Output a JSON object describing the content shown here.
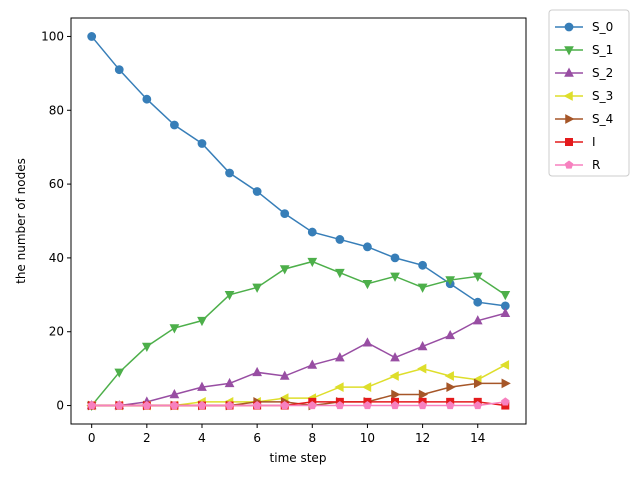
{
  "chart_data": {
    "type": "line",
    "title": "",
    "xlabel": "time step",
    "ylabel": "the number of nodes",
    "xlim": [
      -0.75,
      15.75
    ],
    "ylim": [
      -5,
      105
    ],
    "xticks": [
      0,
      2,
      4,
      6,
      8,
      10,
      12,
      14
    ],
    "yticks": [
      0,
      20,
      40,
      60,
      80,
      100
    ],
    "grid": false,
    "legend_position": "outside-right-top",
    "x": [
      0,
      1,
      2,
      3,
      4,
      5,
      6,
      7,
      8,
      9,
      10,
      11,
      12,
      13,
      14,
      15
    ],
    "series": [
      {
        "name": "S_0",
        "color": "#377eb8",
        "marker": "circle",
        "values": [
          100,
          91,
          83,
          76,
          71,
          63,
          58,
          52,
          47,
          45,
          43,
          40,
          38,
          33,
          28,
          27
        ]
      },
      {
        "name": "S_1",
        "color": "#4daf4a",
        "marker": "triangle-down",
        "values": [
          0,
          9,
          16,
          21,
          23,
          30,
          32,
          37,
          39,
          36,
          33,
          35,
          32,
          34,
          35,
          30
        ]
      },
      {
        "name": "S_2",
        "color": "#984ea3",
        "marker": "triangle-up",
        "values": [
          0,
          0,
          1,
          3,
          5,
          6,
          9,
          8,
          11,
          13,
          17,
          13,
          16,
          19,
          23,
          25
        ]
      },
      {
        "name": "S_3",
        "color": "#dede2b",
        "marker": "triangle-left",
        "values": [
          0,
          0,
          0,
          0,
          1,
          1,
          1,
          2,
          2,
          5,
          5,
          8,
          10,
          8,
          7,
          11
        ]
      },
      {
        "name": "S_4",
        "color": "#a65628",
        "marker": "triangle-right",
        "values": [
          0,
          0,
          0,
          0,
          0,
          0,
          1,
          1,
          0,
          1,
          1,
          3,
          3,
          5,
          6,
          6
        ]
      },
      {
        "name": "I",
        "color": "#e41a1c",
        "marker": "square",
        "values": [
          0,
          0,
          0,
          0,
          0,
          0,
          0,
          0,
          1,
          1,
          1,
          1,
          1,
          1,
          1,
          0
        ]
      },
      {
        "name": "R",
        "color": "#f781bf",
        "marker": "pentagon",
        "values": [
          0,
          0,
          0,
          0,
          0,
          0,
          0,
          0,
          0,
          0,
          0,
          0,
          0,
          0,
          0,
          1
        ]
      }
    ]
  }
}
